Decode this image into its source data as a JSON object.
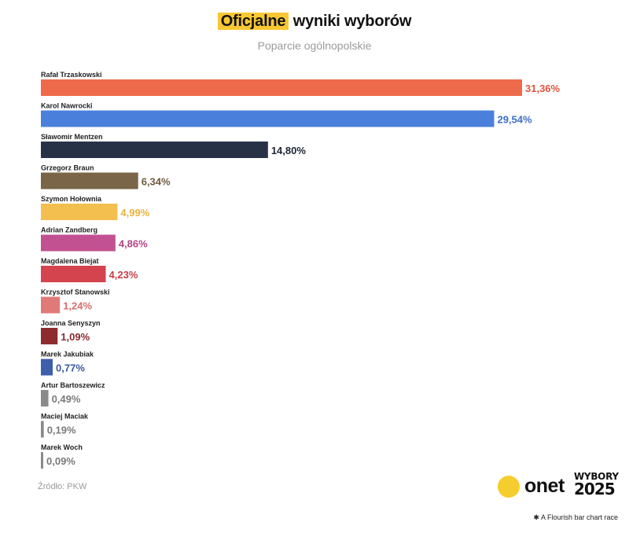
{
  "header": {
    "title_highlight": "Oficjalne",
    "title_rest": " wyniki wyborów",
    "subtitle": "Poparcie ogólnopolskie"
  },
  "footer": {
    "source": "Źródło: PKW",
    "logo_onet": "onet",
    "logo_wybory_line1": "WYBORY",
    "logo_wybory_line2": "2025",
    "credit_icon": "✱",
    "credit": "A Flourish bar chart race"
  },
  "chart_data": {
    "type": "bar",
    "orientation": "horizontal",
    "title": "Oficjalne wyniki wyborów",
    "subtitle": "Poparcie ogólnopolskie",
    "categories": [
      "Rafał Trzaskowski",
      "Karol Nawrocki",
      "Sławomir Mentzen",
      "Grzegorz Braun",
      "Szymon Hołownia",
      "Adrian Zandberg",
      "Magdalena Biejat",
      "Krzysztof Stanowski",
      "Joanna Senyszyn",
      "Marek Jakubiak",
      "Artur Bartoszewicz",
      "Maciej Maciak",
      "Marek Woch"
    ],
    "values": [
      31.36,
      29.54,
      14.8,
      6.34,
      4.99,
      4.86,
      4.23,
      1.24,
      1.09,
      0.77,
      0.49,
      0.19,
      0.09
    ],
    "value_labels": [
      "31,36%",
      "29,54%",
      "14,80%",
      "6,34%",
      "4,99%",
      "4,86%",
      "4,23%",
      "1,24%",
      "1,09%",
      "0,77%",
      "0,49%",
      "0,19%",
      "0,09%"
    ],
    "colors": [
      "#ee6a4a",
      "#4a80dc",
      "#283247",
      "#7a6548",
      "#f3bf4f",
      "#c15191",
      "#d4444e",
      "#e07a78",
      "#8e2b2f",
      "#3e5faa",
      "#8a8a8a",
      "#8a8a8a",
      "#8a8a8a"
    ],
    "label_colors": [
      "#e0543c",
      "#3d6fc9",
      "#1c2435",
      "#6e5a40",
      "#e8b33c",
      "#b04483",
      "#c93c44",
      "#d86e6c",
      "#8a2a2e",
      "#3a58a0",
      "#7a7a7a",
      "#7a7a7a",
      "#7a7a7a"
    ],
    "xlim": [
      0,
      31.36
    ],
    "grid": false,
    "legend": "none"
  }
}
